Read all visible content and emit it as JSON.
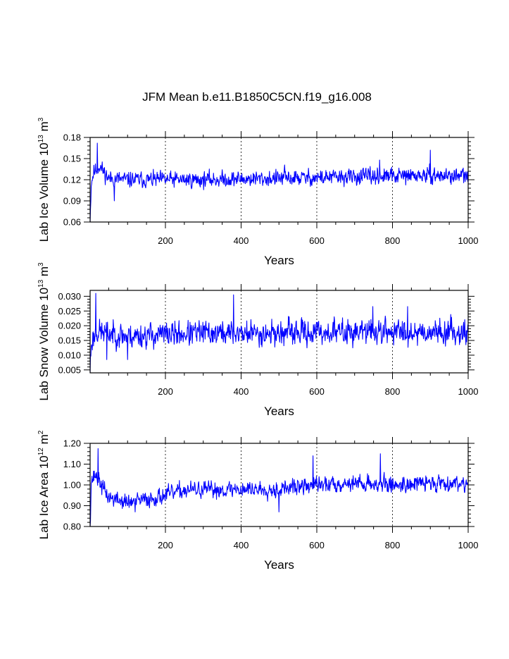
{
  "title": "JFM Mean b.e11.B1850C5CN.f19_g16.008",
  "colors": {
    "line": "#0000ff",
    "axis": "#000000",
    "grid": "#000000"
  },
  "chart_data": [
    {
      "type": "line",
      "name": "ice-volume",
      "ylabel_main": "Lab Ice Volume 10",
      "ylabel_exp": "13",
      "ylabel_unit": " m",
      "ylabel_unit_exp": "3",
      "xlabel": "Years",
      "xlim": [
        1,
        1000
      ],
      "ylim": [
        0.06,
        0.18
      ],
      "xticks": [
        200,
        400,
        600,
        800,
        1000
      ],
      "xtick_labels": [
        "200",
        "400",
        "600",
        "800",
        "1000"
      ],
      "yticks": [
        0.06,
        0.09,
        0.12,
        0.15,
        0.18
      ],
      "ytick_labels": [
        "0.06",
        "0.09",
        "0.12",
        "0.15",
        "0.18"
      ],
      "grid_x": [
        200,
        400,
        600,
        800
      ],
      "series": {
        "n": 1000,
        "start": 0.06,
        "mean_points": [
          [
            1,
            0.06
          ],
          [
            4,
            0.115
          ],
          [
            10,
            0.13
          ],
          [
            25,
            0.14
          ],
          [
            50,
            0.122
          ],
          [
            100,
            0.12
          ],
          [
            300,
            0.12
          ],
          [
            500,
            0.122
          ],
          [
            700,
            0.124
          ],
          [
            900,
            0.126
          ],
          [
            1000,
            0.125
          ]
        ],
        "noise": 0.0085,
        "spikes": [
          [
            20,
            0.172
          ],
          [
            65,
            0.09
          ],
          [
            900,
            0.162
          ],
          [
            515,
            0.141
          ],
          [
            766,
            0.148
          ]
        ],
        "seed": 11
      }
    },
    {
      "type": "line",
      "name": "snow-volume",
      "ylabel_main": "Lab Snow Volume 10",
      "ylabel_exp": "13",
      "ylabel_unit": " m",
      "ylabel_unit_exp": "3",
      "xlabel": "Years",
      "xlim": [
        1,
        1000
      ],
      "ylim": [
        0.004,
        0.032
      ],
      "xticks": [
        200,
        400,
        600,
        800,
        1000
      ],
      "xtick_labels": [
        "200",
        "400",
        "600",
        "800",
        "1000"
      ],
      "yticks": [
        0.005,
        0.01,
        0.015,
        0.02,
        0.025,
        0.03
      ],
      "ytick_labels": [
        "0.005",
        "0.010",
        "0.015",
        "0.020",
        "0.025",
        "0.030"
      ],
      "grid_x": [
        200,
        400,
        600,
        800
      ],
      "series": {
        "n": 1000,
        "start": 0.004,
        "mean_points": [
          [
            1,
            0.006
          ],
          [
            5,
            0.015
          ],
          [
            20,
            0.018
          ],
          [
            100,
            0.0165
          ],
          [
            300,
            0.0175
          ],
          [
            500,
            0.0175
          ],
          [
            700,
            0.018
          ],
          [
            1000,
            0.018
          ]
        ],
        "noise": 0.0032,
        "spikes": [
          [
            16,
            0.031
          ],
          [
            380,
            0.0305
          ],
          [
            100,
            0.0085
          ],
          [
            45,
            0.0085
          ],
          [
            748,
            0.0265
          ],
          [
            840,
            0.0265
          ]
        ],
        "seed": 23
      }
    },
    {
      "type": "line",
      "name": "ice-area",
      "ylabel_main": "Lab Ice Area 10",
      "ylabel_exp": "12",
      "ylabel_unit": " m",
      "ylabel_unit_exp": "2",
      "xlabel": "Years",
      "xlim": [
        1,
        1000
      ],
      "ylim": [
        0.8,
        1.2
      ],
      "xticks": [
        200,
        400,
        600,
        800,
        1000
      ],
      "xtick_labels": [
        "200",
        "400",
        "600",
        "800",
        "1000"
      ],
      "yticks": [
        0.8,
        0.9,
        1.0,
        1.1,
        1.2
      ],
      "ytick_labels": [
        "0.80",
        "0.90",
        "1.00",
        "1.10",
        "1.20"
      ],
      "grid_x": [
        200,
        400,
        600,
        800
      ],
      "series": {
        "n": 1000,
        "start": 0.8,
        "mean_points": [
          [
            1,
            0.8
          ],
          [
            4,
            1.02
          ],
          [
            15,
            1.05
          ],
          [
            30,
            1.0
          ],
          [
            50,
            0.94
          ],
          [
            100,
            0.915
          ],
          [
            150,
            0.93
          ],
          [
            200,
            0.95
          ],
          [
            250,
            0.975
          ],
          [
            300,
            0.975
          ],
          [
            400,
            0.98
          ],
          [
            500,
            0.98
          ],
          [
            600,
            1.0
          ],
          [
            700,
            1.01
          ],
          [
            800,
            1.0
          ],
          [
            900,
            1.01
          ],
          [
            1000,
            1.01
          ]
        ],
        "noise": 0.03,
        "spikes": [
          [
            22,
            1.175
          ],
          [
            590,
            1.14
          ],
          [
            768,
            1.15
          ],
          [
            500,
            0.87
          ],
          [
            120,
            0.87
          ]
        ],
        "seed": 37
      }
    }
  ]
}
